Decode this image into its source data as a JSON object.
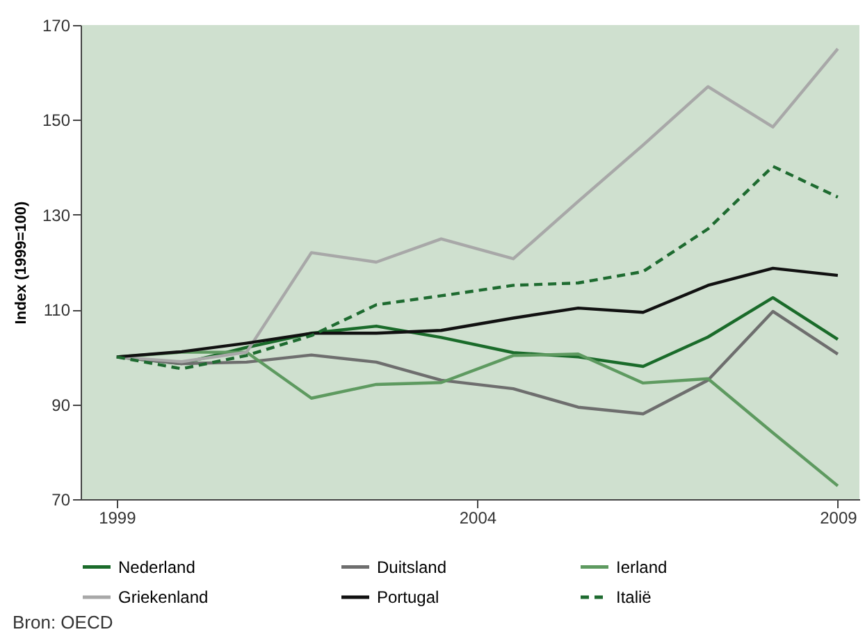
{
  "chart_data": {
    "type": "line",
    "ylabel": "Index (1999=100)",
    "annotations": [
      "Bron: OECD"
    ],
    "x": [
      1999,
      1999.9,
      2000.8,
      2001.7,
      2002.6,
      2003.5,
      2004.5,
      2005.4,
      2006.3,
      2007.2,
      2008.1,
      2009
    ],
    "xlim": [
      1998.5,
      2009.3
    ],
    "xticks": [
      1999,
      2004,
      2009
    ],
    "ylim": [
      70,
      170
    ],
    "yticks": [
      70,
      90,
      110,
      130,
      150,
      170
    ],
    "grid": false,
    "legend": "bottom",
    "marker": "none",
    "series": [
      {
        "name": "Nederland",
        "color": "#1a6b2a",
        "line_style": "solid",
        "values": [
          100,
          98.6,
          102,
          105,
          106.5,
          104.1,
          100.9,
          100,
          98,
          104.2,
          112.5,
          103.7
        ]
      },
      {
        "name": "Duitsland",
        "color": "#6e6e6e",
        "line_style": "solid",
        "values": [
          100,
          98.6,
          98.9,
          100.4,
          98.9,
          95.1,
          93.3,
          89.4,
          88,
          95.1,
          109.6,
          100.6
        ]
      },
      {
        "name": "Ierland",
        "color": "#5e9a60",
        "line_style": "solid",
        "values": [
          100,
          101,
          101,
          91.3,
          94.2,
          94.6,
          100.3,
          100.6,
          94.5,
          95.4,
          84,
          72.8
        ]
      },
      {
        "name": "Griekenland",
        "color": "#a8a8a8",
        "line_style": "solid",
        "values": [
          100,
          99,
          101,
          122,
          120,
          124.9,
          120.7,
          132.8,
          144.7,
          157,
          148.5,
          165
        ]
      },
      {
        "name": "Portugal",
        "color": "#111111",
        "line_style": "solid",
        "values": [
          100,
          101.1,
          102.9,
          105,
          105,
          105.6,
          108.2,
          110.3,
          109.4,
          115.1,
          118.7,
          117.2
        ]
      },
      {
        "name": "Italië",
        "color": "#1e6b30",
        "line_style": "dashed",
        "values": [
          100,
          97.5,
          100.3,
          104.5,
          111,
          112.9,
          115.1,
          115.6,
          118,
          127,
          140.2,
          133.7
        ]
      }
    ]
  }
}
